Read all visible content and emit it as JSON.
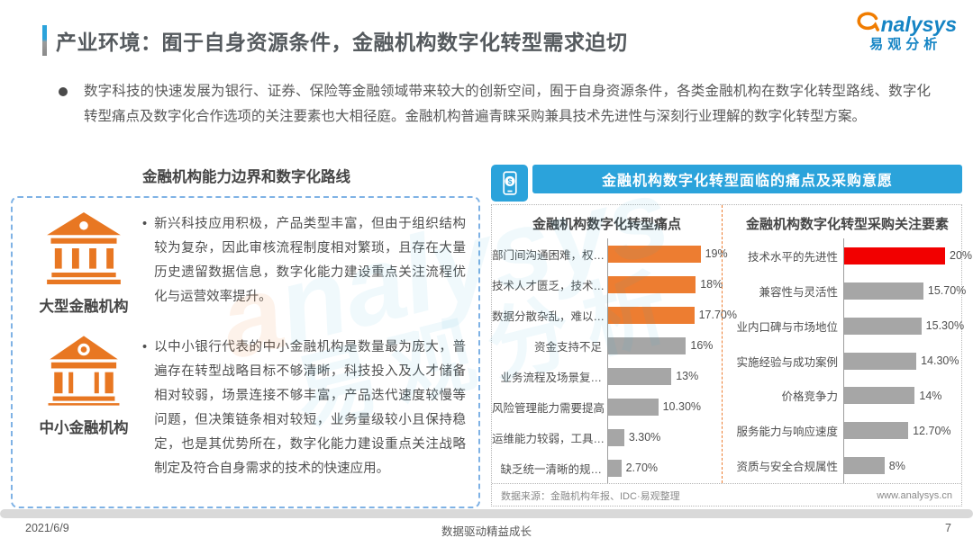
{
  "page": {
    "title": "产业环境：囿于自身资源条件，金融机构数字化转型需求迫切",
    "footer": {
      "date": "2021/6/9",
      "slogan": "数据驱动精益成长",
      "page_number": "7"
    }
  },
  "logo": {
    "brand_a": "a",
    "brand_rest": "nalysys",
    "brand_cn": "易观分析"
  },
  "intro_bullet": "数字科技的快速发展为银行、证券、保险等金融领域带来较大的创新空间，囿于自身资源条件，各类金融机构在数字化转型路线、数字化转型痛点及数字化合作选项的关注要素也大相径庭。金融机构普遍青睐采购兼具技术先进性与深刻行业理解的数字化转型方案。",
  "left_section": {
    "heading": "金融机构能力边界和数字化路线",
    "items": [
      {
        "icon": "bank-large-icon",
        "label": "大型金融机构",
        "bullet": "•",
        "text": "新兴科技应用积极，产品类型丰富，但由于组织结构较为复杂，因此审核流程制度相对繁琐，且存在大量历史遗留数据信息，数字化能力建设重点关注流程优化与运营效率提升。"
      },
      {
        "icon": "bank-small-icon",
        "label": "中小金融机构",
        "bullet": "•",
        "text": "以中小银行代表的中小金融机构是数量最为庞大，普遍存在转型战略目标不够清晰，科技投入及人才储备相对较弱，场景连接不够丰富，产品迭代速度较慢等问题，但决策链条相对较短，业务量级较小且保持稳定，也是其优势所在，数字化能力建设重点关注战略制定及符合自身需求的技术的快速应用。"
      }
    ]
  },
  "right_section": {
    "header": "金融机构数字化转型面临的痛点及采购意愿",
    "source": "数据来源：金融机构年报、IDC·易观整理",
    "website": "www.analysys.cn"
  },
  "chart_data": [
    {
      "type": "bar",
      "orientation": "horizontal",
      "title": "金融机构数字化转型痛点",
      "categories": [
        "部门间沟通困难，权…",
        "技术人才匮乏，技术…",
        "数据分散杂乱，难以…",
        "资金支持不足",
        "业务流程及场景复…",
        "风险管理能力需要提高",
        "运维能力较弱，工具…",
        "缺乏统一清晰的规…"
      ],
      "values": [
        19,
        18,
        17.7,
        16,
        13,
        10.3,
        3.3,
        2.7
      ],
      "value_labels": [
        "19%",
        "18%",
        "17.70%",
        "16%",
        "13%",
        "10.30%",
        "3.30%",
        "2.70%"
      ],
      "bar_colors": [
        "#ed7d31",
        "#ed7d31",
        "#ed7d31",
        "#a6a6a6",
        "#a6a6a6",
        "#a6a6a6",
        "#a6a6a6",
        "#a6a6a6"
      ],
      "xlim": [
        0,
        20
      ],
      "grid": false,
      "legend": false
    },
    {
      "type": "bar",
      "orientation": "horizontal",
      "title": "金融机构数字化转型采购关注要素",
      "categories": [
        "技术水平的先进性",
        "兼容性与灵活性",
        "业内口碑与市场地位",
        "实施经验与成功案例",
        "价格竞争力",
        "服务能力与响应速度",
        "资质与安全合规属性"
      ],
      "values": [
        20,
        15.7,
        15.3,
        14.3,
        14,
        12.7,
        8
      ],
      "value_labels": [
        "20%",
        "15.70%",
        "15.30%",
        "14.30%",
        "14%",
        "12.70%",
        "8%"
      ],
      "bar_colors": [
        "#f20000",
        "#a6a6a6",
        "#a6a6a6",
        "#a6a6a6",
        "#a6a6a6",
        "#a6a6a6",
        "#a6a6a6"
      ],
      "xlim": [
        0,
        20
      ],
      "grid": false,
      "legend": false
    }
  ],
  "colors": {
    "accent_blue": "#2ba3db",
    "logo_blue": "#1584c4",
    "orange": "#ed7d31",
    "red": "#f20000",
    "gray_bar": "#a6a6a6",
    "footer_bar": "#d9d9d9"
  }
}
